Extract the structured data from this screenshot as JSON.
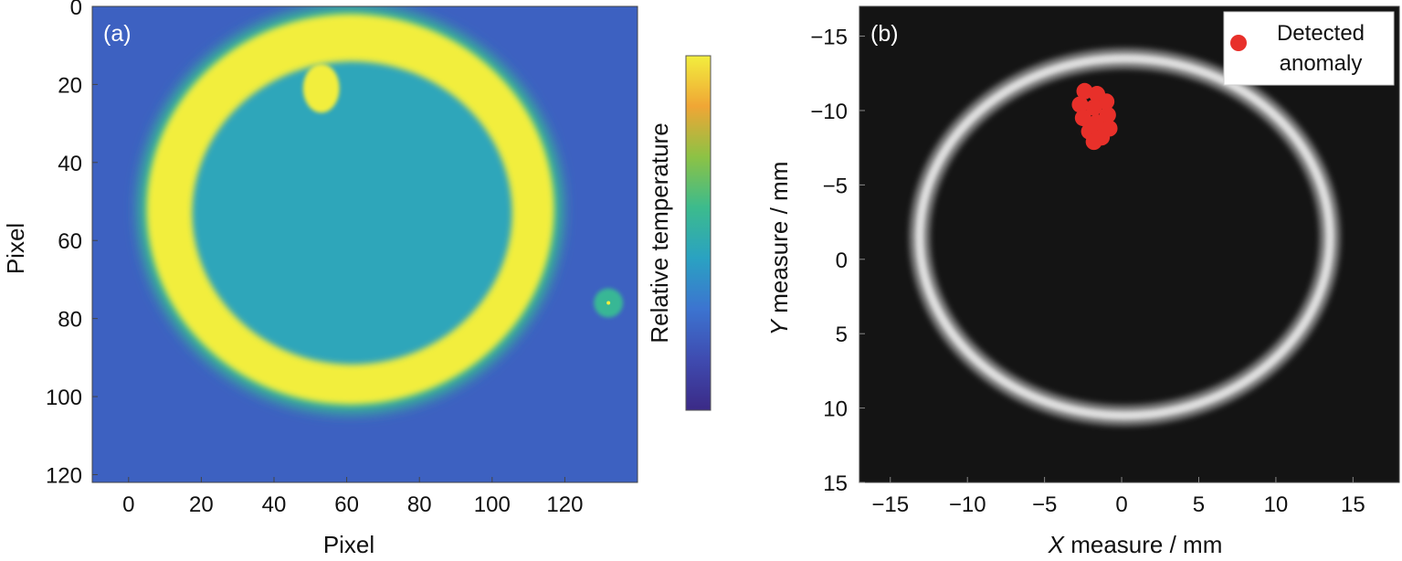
{
  "chart_data": [
    {
      "type": "heatmap",
      "panel_label": "(a)",
      "xlabel": "Pixel",
      "ylabel": "Pixel",
      "xlim": [
        -10,
        140
      ],
      "ylim": [
        0,
        122
      ],
      "x_ticks": [
        0,
        20,
        40,
        60,
        80,
        100,
        120
      ],
      "y_ticks": [
        0,
        20,
        40,
        60,
        80,
        100,
        120
      ],
      "colorbar_label": "Relative temperature",
      "colormap": [
        "#3b2a86",
        "#3f4bb0",
        "#3c74d0",
        "#2aa2c2",
        "#3cbb8d",
        "#8cc245",
        "#f0a635",
        "#f2ee3e"
      ],
      "features": {
        "hot_ring": {
          "center": [
            61,
            52
          ],
          "outer_radius": [
            56,
            50
          ],
          "thickness": 12,
          "level": 1.0
        },
        "hot_spot": {
          "center": [
            53,
            21
          ],
          "radius": 5,
          "level": 1.0
        },
        "small_spot": {
          "center": [
            132,
            76
          ],
          "radius": 3,
          "level": 0.55
        },
        "interior_level": 0.45,
        "background_level": 0.22
      },
      "grid": false
    },
    {
      "type": "scatter",
      "panel_label": "(b)",
      "xlabel_italic": "X",
      "xlabel_rest": " measure / mm",
      "ylabel_italic": "Y",
      "ylabel_rest": " measure / mm",
      "xlim": [
        -17,
        18
      ],
      "ylim": [
        -17,
        15
      ],
      "y_inverted": true,
      "x_ticks": [
        -15,
        -10,
        -5,
        0,
        5,
        10,
        15
      ],
      "y_ticks": [
        -15,
        -10,
        -5,
        0,
        5,
        10,
        15
      ],
      "x_tick_labels": [
        "−15",
        "−10",
        "−5",
        "0",
        "5",
        "10",
        "15"
      ],
      "y_tick_labels": [
        "−15",
        "−10",
        "−5",
        "0",
        "5",
        "10",
        "15"
      ],
      "background": "#141414",
      "ring": {
        "center": [
          0.2,
          -1.5
        ],
        "radii": [
          13.3,
          12.0
        ],
        "color": "#dddddd"
      },
      "series": [
        {
          "name": "Detected anomaly",
          "color": "#e8302a",
          "points": [
            [
              -2.4,
              -11.3
            ],
            [
              -1.6,
              -11.1
            ],
            [
              -1.0,
              -10.6
            ],
            [
              -2.7,
              -10.4
            ],
            [
              -1.8,
              -10.2
            ],
            [
              -0.9,
              -9.7
            ],
            [
              -2.5,
              -9.5
            ],
            [
              -1.6,
              -9.2
            ],
            [
              -0.8,
              -8.8
            ],
            [
              -2.1,
              -8.6
            ],
            [
              -1.3,
              -8.2
            ],
            [
              -1.8,
              -7.9
            ]
          ]
        }
      ],
      "legend": {
        "position": "top-right",
        "label_line1": "Detected",
        "label_line2": "anomaly"
      },
      "grid": false
    }
  ]
}
